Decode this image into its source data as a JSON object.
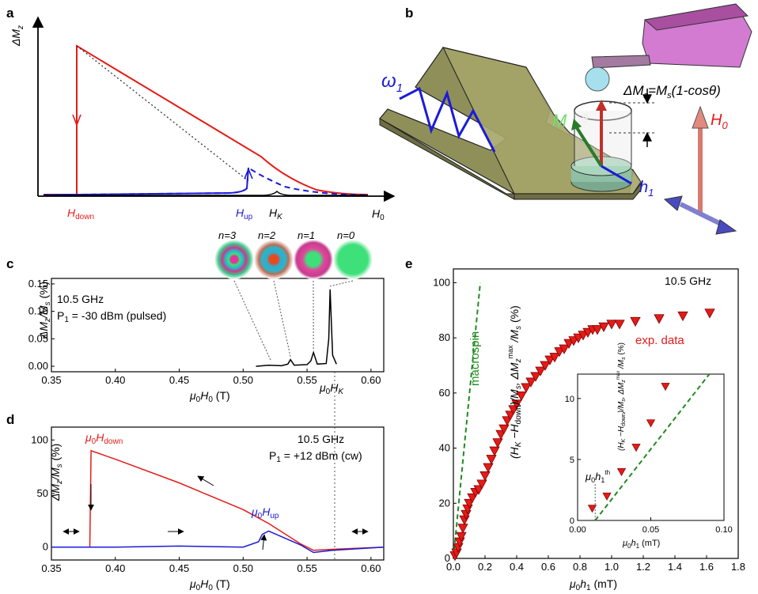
{
  "panels": {
    "a": {
      "label": "a",
      "ylabel": "ΔM",
      "ylabel_sub": "z",
      "h_down": "H",
      "h_down_sub": "down",
      "h_up": "H",
      "h_up_sub": "up",
      "h_k": "H",
      "h_k_sub": "K",
      "xlabel": "H",
      "xlabel_sub": "0"
    },
    "b": {
      "label": "b",
      "omega": "ω",
      "omega_sub": "1",
      "m_label": "M",
      "theta": "θ",
      "formula": "ΔM",
      "formula_sub": "z",
      "formula_rest": "=M",
      "formula_sub2": "s",
      "formula_tail": "(1-cosθ)",
      "h0": "H",
      "h0_sub": "0",
      "h1": "h",
      "h1_sub": "1"
    },
    "c": {
      "label": "c",
      "freq": "10.5 GHz",
      "power": "P",
      "power_sub": "1",
      "power_rest": " = -30 dBm (pulsed)",
      "ylabel": "ΔM",
      "ylabel_sub": "z",
      "ylabel_rest": "/M",
      "ylabel_sub2": "s",
      "ylabel_unit": " (%)",
      "xlabel": "μ",
      "xlabel_sub": "0",
      "xlabel_rest": "H",
      "xlabel_sub2": "0",
      "xlabel_unit": "  (T)",
      "hk_label": "μ",
      "hk_sub": "0",
      "hk_rest": "H",
      "hk_sub2": "K",
      "modes": [
        "n=3",
        "n=2",
        "n=1",
        "n=0"
      ],
      "xticks": [
        "0.35",
        "0.40",
        "0.45",
        "0.50",
        "0.55",
        "0.60"
      ],
      "yticks": [
        "0.00",
        "0.05",
        "0.10",
        "0.15"
      ]
    },
    "d": {
      "label": "d",
      "freq": "10.5 GHz",
      "power": "P",
      "power_sub": "1",
      "power_rest": " = +12 dBm (cw)",
      "ylabel": "ΔM",
      "ylabel_sub": "z",
      "ylabel_rest": "/M",
      "ylabel_sub2": "s",
      "ylabel_unit": "  (%)",
      "xlabel": "μ",
      "xlabel_sub": "0",
      "xlabel_rest": "H",
      "xlabel_sub2": "0",
      "xlabel_unit": "  (T)",
      "hdown": "μ",
      "hdown_sub": "0",
      "hdown_rest": "H",
      "hdown_sub2": "down",
      "hup": "μ",
      "hup_sub": "0",
      "hup_rest": "H",
      "hup_sub2": "up",
      "xticks": [
        "0.35",
        "0.40",
        "0.45",
        "0.50",
        "0.55",
        "0.60"
      ],
      "yticks": [
        "0",
        "50",
        "100"
      ]
    },
    "e": {
      "label": "e",
      "freq": "10.5 GHz",
      "macrospin": "macrospin",
      "exp": "exp. data",
      "xlabel": "μ",
      "xlabel_sub": "0",
      "xlabel_rest": "h",
      "xlabel_sub2": "1",
      "xlabel_unit": "  (mT)",
      "ylabel": "(H",
      "ylabel_s1": "K",
      "ylabel_m": " −H",
      "ylabel_s2": "down",
      "ylabel_m2": ")/M",
      "ylabel_s3": "s",
      "ylabel_m3": ", ΔM",
      "ylabel_s4": "z",
      "ylabel_sup": "max",
      "ylabel_m4": " /M",
      "ylabel_s5": "s",
      "ylabel_unit": "  (%)",
      "xticks": [
        "0.0",
        "0.2",
        "0.4",
        "0.6",
        "0.8",
        "1.0",
        "1.2",
        "1.4",
        "1.6",
        "1.8"
      ],
      "yticks": [
        "0",
        "20",
        "40",
        "60",
        "80",
        "100"
      ],
      "inset_xticks": [
        "0.00",
        "0.05",
        "0.10"
      ],
      "inset_yticks": [
        "0",
        "5",
        "10"
      ],
      "inset_xlabel": "μ",
      "inset_xlabel_sub": "0",
      "inset_xlabel_rest": "h",
      "inset_xlabel_sub2": "1",
      "inset_xlabel_unit": "  (mT)",
      "threshold": "μ",
      "threshold_sub": "0",
      "threshold_rest": "h",
      "threshold_sub2": "1",
      "threshold_sup": "th"
    }
  },
  "colors": {
    "red": "#e41b17",
    "blue": "#1b1bd8",
    "green": "#1f8a1f",
    "gray": "#555555"
  },
  "chart_data": [
    {
      "type": "line",
      "panel": "c",
      "xlim": [
        0.35,
        0.61
      ],
      "ylim": [
        -0.01,
        0.16
      ],
      "peaks": [
        {
          "mode": "n=3",
          "x": 0.522,
          "y": 0.003
        },
        {
          "mode": "n=2",
          "x": 0.537,
          "y": 0.012
        },
        {
          "mode": "n=1",
          "x": 0.555,
          "y": 0.025
        },
        {
          "mode": "n=0",
          "x": 0.568,
          "y": 0.14
        }
      ],
      "x": [
        0.51,
        0.52,
        0.53,
        0.535,
        0.537,
        0.54,
        0.55,
        0.553,
        0.555,
        0.558,
        0.565,
        0.567,
        0.568,
        0.57,
        0.573
      ],
      "y": [
        0.0,
        0.002,
        0.001,
        0.004,
        0.012,
        0.002,
        0.003,
        0.01,
        0.025,
        0.004,
        0.005,
        0.05,
        0.14,
        0.02,
        0.004
      ]
    },
    {
      "type": "line",
      "panel": "d",
      "xlim": [
        0.35,
        0.61
      ],
      "ylim": [
        -12,
        112
      ],
      "series": [
        {
          "name": "",
          "color": "red",
          "x": [
            0.35,
            0.38,
            0.381,
            0.4,
            0.45,
            0.5,
            0.52,
            0.545,
            0.555,
            0.57,
            0.61
          ],
          "y": [
            0,
            0,
            90,
            82,
            60,
            35,
            22,
            3,
            -3,
            -2,
            0
          ]
        },
        {
          "name": "",
          "color": "blue",
          "x": [
            0.35,
            0.4,
            0.45,
            0.5,
            0.512,
            0.515,
            0.52,
            0.545,
            0.555,
            0.57,
            0.61
          ],
          "y": [
            0,
            0,
            1,
            0,
            5,
            12,
            15,
            2,
            -5,
            -3,
            0
          ]
        }
      ]
    },
    {
      "type": "scatter",
      "panel": "e",
      "xlim": [
        0.0,
        1.8
      ],
      "ylim": [
        0,
        105
      ],
      "series": [
        {
          "name": "exp. data",
          "x": [
            0.01,
            0.02,
            0.03,
            0.04,
            0.05,
            0.06,
            0.07,
            0.08,
            0.09,
            0.1,
            0.12,
            0.14,
            0.16,
            0.18,
            0.2,
            0.22,
            0.24,
            0.26,
            0.28,
            0.3,
            0.32,
            0.34,
            0.36,
            0.38,
            0.4,
            0.43,
            0.46,
            0.49,
            0.52,
            0.55,
            0.58,
            0.61,
            0.64,
            0.67,
            0.7,
            0.73,
            0.76,
            0.79,
            0.82,
            0.85,
            0.88,
            0.91,
            0.95,
            1.0,
            1.05,
            1.15,
            1.3,
            1.45,
            1.62
          ],
          "y": [
            1,
            2,
            4,
            6,
            8,
            11,
            14,
            16,
            18,
            20,
            22,
            24,
            25,
            27,
            30,
            33,
            36,
            39,
            42,
            45,
            47,
            50,
            52,
            54,
            56,
            59,
            62,
            64,
            66,
            68,
            70,
            72,
            73,
            75,
            76,
            78,
            79,
            80,
            81,
            82,
            83,
            83,
            84,
            85,
            85,
            86,
            87,
            88,
            89
          ]
        },
        {
          "name": "macrospin",
          "x": [
            0.0,
            0.17
          ],
          "y": [
            0,
            100
          ]
        }
      ],
      "inset": {
        "xlim": [
          0.0,
          0.1
        ],
        "ylim": [
          0,
          12
        ],
        "threshold_x": 0.012
      }
    }
  ]
}
